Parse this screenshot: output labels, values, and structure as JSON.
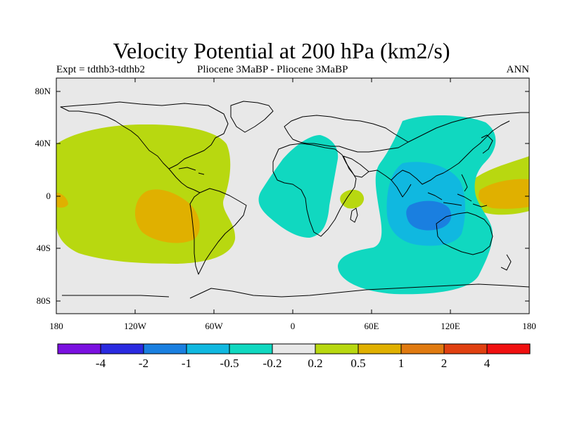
{
  "title": "Velocity Potential at 200 hPa (km2/s)",
  "subtitle_left": "Expt = tdthb3-tdthb2",
  "subtitle_center": "Pliocene   3MaBP - Pliocene   3MaBP",
  "subtitle_right": "ANN",
  "lat_labels": [
    "80N",
    "40N",
    "0",
    "40S",
    "80S"
  ],
  "lon_labels": [
    "180",
    "120W",
    "60W",
    "0",
    "60E",
    "120E",
    "180"
  ],
  "colorbar": {
    "labels": [
      "-4",
      "-2",
      "-1",
      "-0.5",
      "-0.2",
      "0.2",
      "0.5",
      "1",
      "2",
      "4"
    ],
    "colors": [
      "#7a10e0",
      "#2a2ae0",
      "#1a7fe0",
      "#10b8e0",
      "#10d8c0",
      "#e8e8e8",
      "#b8d810",
      "#e0b000",
      "#e07a10",
      "#e04010",
      "#f01010"
    ]
  },
  "colors": {
    "ocean_background": "#e8e8e8",
    "coastline": "#000000"
  }
}
